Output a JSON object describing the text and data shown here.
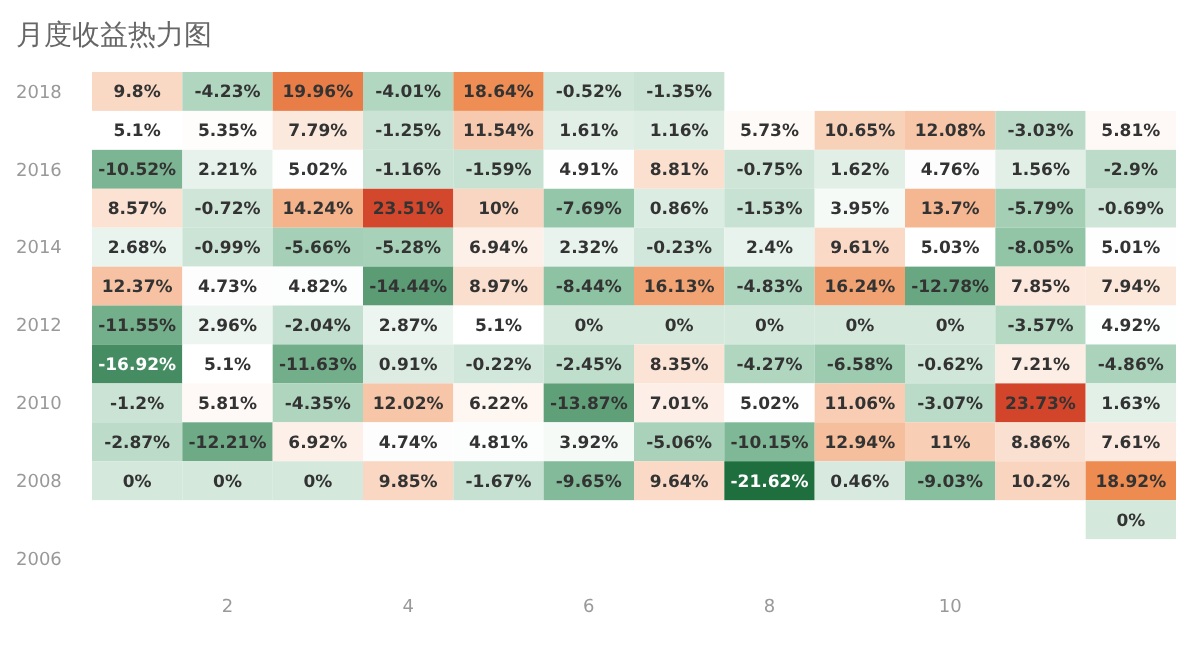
{
  "chart_data": {
    "type": "heatmap",
    "title": "月度收益热力图",
    "categories": [
      null,
      "2",
      null,
      "4",
      null,
      "6",
      null,
      "8",
      null,
      "10",
      null,
      null
    ],
    "y_categories": [
      "2018",
      null,
      "2016",
      null,
      "2014",
      null,
      "2012",
      null,
      "2010",
      null,
      "2008",
      null,
      "2006"
    ],
    "cells": [
      [
        9.8,
        -4.23,
        19.96,
        -4.01,
        18.64,
        -0.52,
        -1.35,
        null,
        null,
        null,
        null,
        null
      ],
      [
        5.1,
        5.35,
        7.79,
        -1.25,
        11.54,
        1.61,
        1.16,
        5.73,
        10.65,
        12.08,
        -3.03,
        5.81
      ],
      [
        -10.52,
        2.21,
        5.02,
        -1.16,
        -1.59,
        4.91,
        8.81,
        -0.75,
        1.62,
        4.76,
        1.56,
        -2.9
      ],
      [
        8.57,
        -0.72,
        14.24,
        23.51,
        10,
        -7.69,
        0.86,
        -1.53,
        3.95,
        13.7,
        -5.79,
        -0.69
      ],
      [
        2.68,
        -0.99,
        -5.66,
        -5.28,
        6.94,
        2.32,
        -0.23,
        2.4,
        9.61,
        5.03,
        -8.05,
        5.01
      ],
      [
        12.37,
        4.73,
        4.82,
        -14.44,
        8.97,
        -8.44,
        16.13,
        -4.83,
        16.24,
        -12.78,
        7.85,
        7.94
      ],
      [
        -11.55,
        2.96,
        -2.04,
        2.87,
        5.1,
        0,
        0,
        0,
        0,
        0,
        -3.57,
        4.92
      ],
      [
        -16.92,
        5.1,
        -11.63,
        0.91,
        -0.22,
        -2.45,
        8.35,
        -4.27,
        -6.58,
        -0.62,
        7.21,
        -4.86
      ],
      [
        -1.2,
        5.81,
        -4.35,
        12.02,
        6.22,
        -13.87,
        7.01,
        5.02,
        11.06,
        -3.07,
        23.73,
        1.63
      ],
      [
        -2.87,
        -12.21,
        6.92,
        4.74,
        4.81,
        3.92,
        -5.06,
        -10.15,
        12.94,
        11,
        8.86,
        7.61
      ],
      [
        0,
        0,
        0,
        9.85,
        -1.67,
        -9.65,
        9.64,
        -21.62,
        0.46,
        -9.03,
        10.2,
        18.92
      ],
      [
        null,
        null,
        null,
        null,
        null,
        null,
        null,
        null,
        null,
        null,
        null,
        0
      ],
      [
        null,
        null,
        null,
        null,
        null,
        null,
        null,
        null,
        null,
        null,
        null,
        null
      ]
    ],
    "cell_labels": [
      [
        "9.8%",
        "-4.23%",
        "19.96%",
        "-4.01%",
        "18.64%",
        "-0.52%",
        "-1.35%",
        null,
        null,
        null,
        null,
        null
      ],
      [
        "5.1%",
        "5.35%",
        "7.79%",
        "-1.25%",
        "11.54%",
        "1.61%",
        "1.16%",
        "5.73%",
        "10.65%",
        "12.08%",
        "-3.03%",
        "5.81%"
      ],
      [
        "-10.52%",
        "2.21%",
        "5.02%",
        "-1.16%",
        "-1.59%",
        "4.91%",
        "8.81%",
        "-0.75%",
        "1.62%",
        "4.76%",
        "1.56%",
        "-2.9%"
      ],
      [
        "8.57%",
        "-0.72%",
        "14.24%",
        "23.51%",
        "10%",
        "-7.69%",
        "0.86%",
        "-1.53%",
        "3.95%",
        "13.7%",
        "-5.79%",
        "-0.69%"
      ],
      [
        "2.68%",
        "-0.99%",
        "-5.66%",
        "-5.28%",
        "6.94%",
        "2.32%",
        "-0.23%",
        "2.4%",
        "9.61%",
        "5.03%",
        "-8.05%",
        "5.01%"
      ],
      [
        "12.37%",
        "4.73%",
        "4.82%",
        "-14.44%",
        "8.97%",
        "-8.44%",
        "16.13%",
        "-4.83%",
        "16.24%",
        "-12.78%",
        "7.85%",
        "7.94%"
      ],
      [
        "-11.55%",
        "2.96%",
        "-2.04%",
        "2.87%",
        "5.1%",
        "0%",
        "0%",
        "0%",
        "0%",
        "0%",
        "-3.57%",
        "4.92%"
      ],
      [
        "-16.92%",
        "5.1%",
        "-11.63%",
        "0.91%",
        "-0.22%",
        "-2.45%",
        "8.35%",
        "-4.27%",
        "-6.58%",
        "-0.62%",
        "7.21%",
        "-4.86%"
      ],
      [
        "-1.2%",
        "5.81%",
        "-4.35%",
        "12.02%",
        "6.22%",
        "-13.87%",
        "7.01%",
        "5.02%",
        "11.06%",
        "-3.07%",
        "23.73%",
        "1.63%"
      ],
      [
        "-2.87%",
        "-12.21%",
        "6.92%",
        "4.74%",
        "4.81%",
        "3.92%",
        "-5.06%",
        "-10.15%",
        "12.94%",
        "11%",
        "8.86%",
        "7.61%"
      ],
      [
        "0%",
        "0%",
        "0%",
        "9.85%",
        "-1.67%",
        "-9.65%",
        "9.64%",
        "-21.62%",
        "0.46%",
        "-9.03%",
        "10.2%",
        "18.92%"
      ],
      [
        null,
        null,
        null,
        null,
        null,
        null,
        null,
        null,
        null,
        null,
        null,
        "0%"
      ],
      [
        null,
        null,
        null,
        null,
        null,
        null,
        null,
        null,
        null,
        null,
        null,
        null
      ]
    ]
  }
}
